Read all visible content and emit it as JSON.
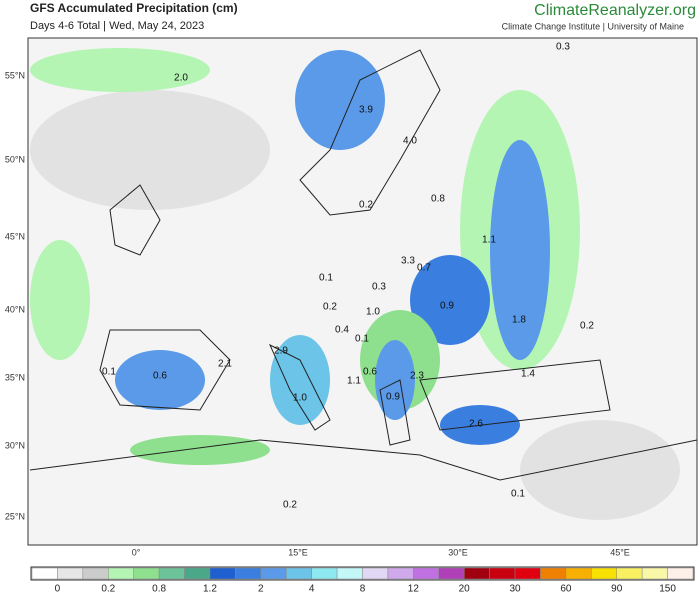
{
  "header": {
    "title": "GFS Accumulated Precipitation (cm)",
    "subtitle": "Days 4-6 Total | Wed, May 24, 2023",
    "brand": "ClimateReanalyzer.org",
    "brand_sub": "Climate Change Institute | University of Maine"
  },
  "latitude_labels": [
    "55°N",
    "50°N",
    "45°N",
    "40°N",
    "35°N",
    "30°N",
    "25°N"
  ],
  "longitude_labels": [
    "0°",
    "15°E",
    "30°E",
    "45°E"
  ],
  "map_labels": [
    "2.0",
    "3.9",
    "4.0",
    "0.2",
    "0.8",
    "1.1",
    "3.3",
    "0.7",
    "0.1",
    "0.3",
    "0.2",
    "1.0",
    "0.4",
    "0.1",
    "0.9",
    "1.8",
    "0.2",
    "2.9",
    "2.1",
    "0.1",
    "0.6",
    "1.1",
    "0.6",
    "2.3",
    "1.4",
    "1.0",
    "0.9",
    "2.6",
    "0.1",
    "0.2",
    "0.3"
  ],
  "colorbar": {
    "labels": [
      "0",
      "0.2",
      "0.8",
      "1.2",
      "2",
      "4",
      "8",
      "12",
      "20",
      "30",
      "60",
      "90",
      "150"
    ],
    "colors": [
      "#ffffff",
      "#e6e6e6",
      "#cccccc",
      "#b4f5b4",
      "#8ee08e",
      "#6cc39a",
      "#4aa888",
      "#1f5fd0",
      "#3a7ee0",
      "#5a9ae8",
      "#6cc4e8",
      "#8ee8f0",
      "#c4f8f8",
      "#e0d8f4",
      "#d0a8ec",
      "#c070e0",
      "#b040b8",
      "#a00010",
      "#c80010",
      "#e00010",
      "#f08000",
      "#f8b000",
      "#f8e000",
      "#f8f060",
      "#f8f8a8",
      "#fcf0e8"
    ]
  }
}
